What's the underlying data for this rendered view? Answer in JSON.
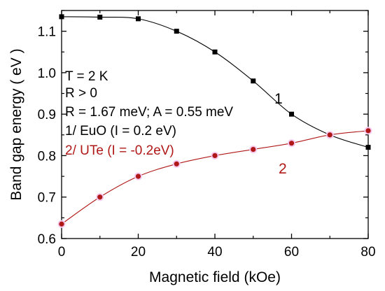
{
  "chart_data": {
    "type": "line",
    "xlabel": "Magnetic field (kOe)",
    "ylabel": "Band gap energy ( eV )",
    "xlim": [
      0,
      80
    ],
    "ylim": [
      0.6,
      1.15
    ],
    "xticks": [
      "0",
      "20",
      "40",
      "60",
      "80"
    ],
    "yticks": [
      "0.6",
      "0.7",
      "0.8",
      "0.9",
      "1.0",
      "1.1"
    ],
    "grid": false,
    "series": [
      {
        "name": "1",
        "color": "#000000",
        "marker": "square",
        "x": [
          0,
          10,
          20,
          30,
          40,
          50,
          60,
          70,
          80
        ],
        "y": [
          1.135,
          1.134,
          1.13,
          1.1,
          1.05,
          0.98,
          0.9,
          0.85,
          0.82
        ]
      },
      {
        "name": "2",
        "color": "#b01818",
        "marker": "circle",
        "x": [
          0,
          10,
          20,
          30,
          40,
          50,
          60,
          70,
          80
        ],
        "y": [
          0.635,
          0.7,
          0.75,
          0.78,
          0.8,
          0.815,
          0.83,
          0.85,
          0.86
        ]
      }
    ],
    "annotations": [
      {
        "text": "T = 2 K",
        "color": "#000000"
      },
      {
        "text": "R > 0",
        "color": "#000000"
      },
      {
        "text": "R = 1.67 meV; A = 0.55 meV",
        "color": "#000000"
      },
      {
        "text": "1/ EuO (I = 0.2 eV)",
        "color": "#000000"
      },
      {
        "text": "2/ UTe (I = -0.2eV)",
        "color": "#b01818"
      }
    ]
  }
}
